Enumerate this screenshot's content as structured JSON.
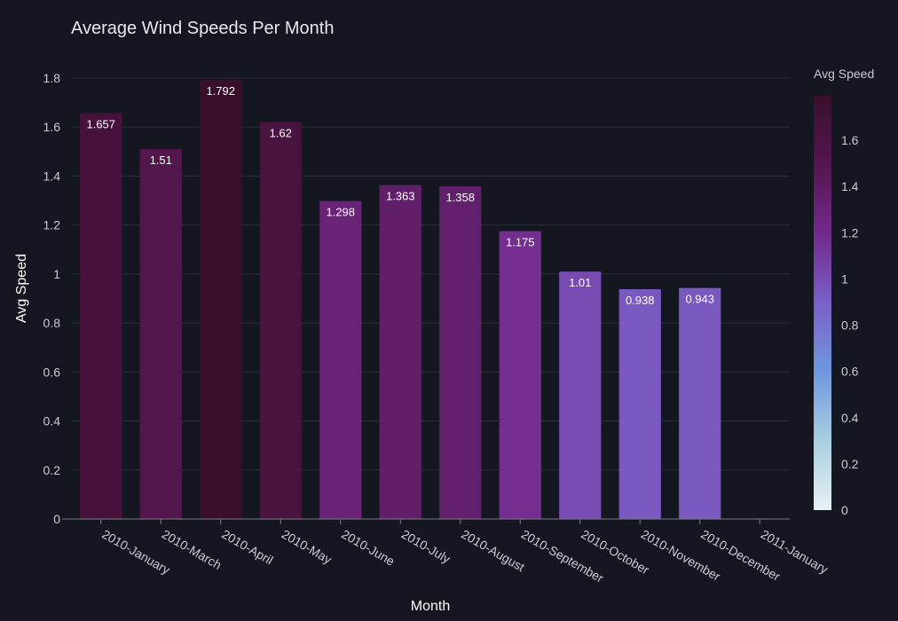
{
  "chart_data": {
    "type": "bar",
    "title": "Average Wind Speeds Per Month",
    "xlabel": "Month",
    "ylabel": "Avg Speed",
    "categories": [
      "2010-January",
      "2010-March",
      "2010-April",
      "2010-May",
      "2010-June",
      "2010-July",
      "2010-August",
      "2010-September",
      "2010-October",
      "2010-November",
      "2010-December",
      "2011-January"
    ],
    "values": [
      1.657,
      1.51,
      1.792,
      1.62,
      1.298,
      1.363,
      1.358,
      1.175,
      1.01,
      0.938,
      0.943,
      null
    ],
    "value_labels": [
      "1.657",
      "1.51",
      "1.792",
      "1.62",
      "1.298",
      "1.363",
      "1.358",
      "1.175",
      "1.01",
      "0.938",
      "0.943",
      ""
    ],
    "ylim": [
      0,
      1.8
    ],
    "yticks": [
      0,
      0.2,
      0.4,
      0.6,
      0.8,
      1,
      1.2,
      1.4,
      1.6,
      1.8
    ],
    "ytick_labels": [
      "0",
      "0.2",
      "0.4",
      "0.6",
      "0.8",
      "1",
      "1.2",
      "1.4",
      "1.6",
      "1.8"
    ],
    "grid": true,
    "colorbar": {
      "title": "Avg Speed",
      "range": [
        0,
        1.792
      ],
      "ticks": [
        0,
        0.2,
        0.4,
        0.6,
        0.8,
        1,
        1.2,
        1.4,
        1.6
      ],
      "tick_labels": [
        "0",
        "0.2",
        "0.4",
        "0.6",
        "0.8",
        "1",
        "1.2",
        "1.4",
        "1.6"
      ],
      "colors": [
        "#e8f0f3",
        "#a9cfe0",
        "#6f97dd",
        "#7a60c8",
        "#722a8c",
        "#54164f",
        "#3a0f2c"
      ]
    },
    "colors": {
      "background": "#141720",
      "grid": "#2b2f3a",
      "text": "#c9ccd4"
    }
  }
}
